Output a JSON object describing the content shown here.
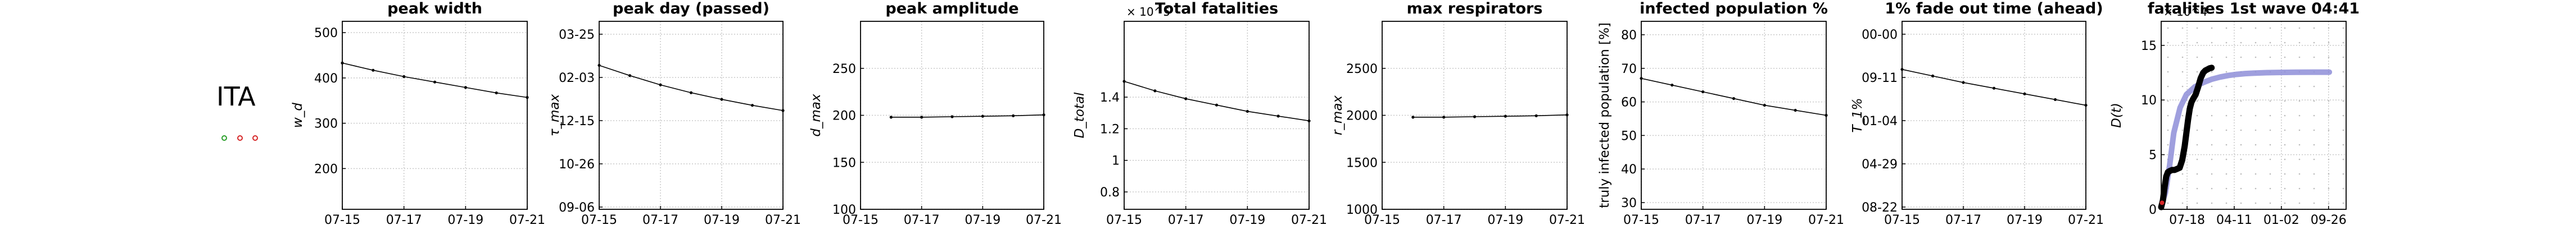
{
  "country": "ITA",
  "status_dots": [
    {
      "color": "#2ca02c"
    },
    {
      "color": "#d62728"
    },
    {
      "color": "#d62728"
    }
  ],
  "chart_data": [
    {
      "type": "line",
      "title": "peak width",
      "ylabel": "w_d",
      "xticks": [
        "07-15",
        "07-17",
        "07-19",
        "07-21"
      ],
      "yticks": [
        "200",
        "300",
        "400",
        "500"
      ],
      "ylim": [
        110,
        525
      ],
      "x": [
        0,
        1,
        2,
        3,
        4,
        5,
        6
      ],
      "values": [
        433,
        417,
        403,
        391,
        379,
        367,
        357
      ]
    },
    {
      "type": "line",
      "title": "peak day (passed)",
      "ylabel": "τ_max",
      "xticks": [
        "07-15",
        "07-17",
        "07-19",
        "07-21"
      ],
      "yticks": [
        "09-06",
        "10-26",
        "12-15",
        "02-03",
        "03-25"
      ],
      "ylim": [
        0,
        7.9
      ],
      "x": [
        0,
        1,
        2,
        3,
        4,
        5,
        6
      ],
      "values": [
        6.05,
        5.62,
        5.23,
        4.9,
        4.62,
        4.37,
        4.15
      ]
    },
    {
      "type": "line",
      "title": "peak amplitude",
      "ylabel": "d_max",
      "xticks": [
        "07-15",
        "07-17",
        "07-19",
        "07-21"
      ],
      "yticks": [
        "100",
        "150",
        "200",
        "250"
      ],
      "ylim": [
        100,
        300
      ],
      "x": [
        1,
        2,
        3,
        4,
        5,
        6
      ],
      "values": [
        198,
        198,
        198.5,
        199,
        199.5,
        200.5
      ]
    },
    {
      "type": "line",
      "title": "Total fatalities",
      "ylabel": "D_total",
      "offset_text": "× 10^5",
      "xticks": [
        "07-15",
        "07-17",
        "07-19",
        "07-21"
      ],
      "yticks": [
        "0.8",
        "1",
        "1.2",
        "1.4"
      ],
      "ylim": [
        0.69,
        1.88
      ],
      "x": [
        0,
        1,
        2,
        3,
        4,
        5,
        6
      ],
      "values": [
        1.5,
        1.44,
        1.39,
        1.35,
        1.31,
        1.28,
        1.25
      ]
    },
    {
      "type": "line",
      "title": "max respirators",
      "ylabel": "r_max",
      "xticks": [
        "07-15",
        "07-17",
        "07-19",
        "07-21"
      ],
      "yticks": [
        "1000",
        "1500",
        "2000",
        "2500"
      ],
      "ylim": [
        1000,
        3000
      ],
      "x": [
        1,
        2,
        3,
        4,
        5,
        6
      ],
      "values": [
        1980,
        1980,
        1985,
        1990,
        1995,
        2005
      ]
    },
    {
      "type": "line",
      "title": "infected population %",
      "ylabel": "truly infected population [%]",
      "xticks": [
        "07-15",
        "07-17",
        "07-19",
        "07-21"
      ],
      "yticks": [
        "30",
        "40",
        "50",
        "60",
        "70",
        "80"
      ],
      "ylim": [
        28,
        84
      ],
      "x": [
        0,
        1,
        2,
        3,
        4,
        5,
        6
      ],
      "values": [
        67,
        65,
        63,
        61,
        59,
        57.5,
        56
      ]
    },
    {
      "type": "line",
      "title": "1% fade out time (ahead)",
      "ylabel": "T_1%",
      "xticks": [
        "07-15",
        "07-17",
        "07-19",
        "07-21"
      ],
      "yticks": [
        "08-22",
        "04-29",
        "01-04",
        "09-11",
        "00-00"
      ],
      "ylim": [
        0,
        4.3
      ],
      "x": [
        0,
        1,
        2,
        3,
        4,
        5,
        6
      ],
      "values": [
        3.2,
        3.05,
        2.9,
        2.77,
        2.64,
        2.51,
        2.38
      ]
    },
    {
      "type": "scatter",
      "title": "fatalities 1st wave 04:41",
      "ylabel": "D(t)",
      "offset_text": "× 10^4",
      "xticks": [
        "07-18",
        "04-11",
        "01-02",
        "09-26"
      ],
      "yticks": [
        "0",
        "5",
        "10",
        "15"
      ],
      "ylim": [
        0,
        17.2
      ],
      "series": [
        {
          "x": [
            0,
            0.1,
            0.2,
            0.3,
            0.45,
            0.6,
            0.8,
            1.0,
            1.2,
            1.4,
            1.6,
            1.8,
            2.0,
            2.2,
            2.5,
            2.8,
            3.2,
            3.6,
            4.0
          ],
          "values": [
            0.3,
            1.5,
            4.0,
            7.0,
            9.3,
            10.5,
            11.2,
            11.6,
            11.9,
            12.1,
            12.25,
            12.35,
            12.42,
            12.46,
            12.5,
            12.52,
            12.54,
            12.55,
            12.55
          ]
        },
        {
          "x": [
            0,
            0.04,
            0.08,
            0.12,
            0.16,
            0.2,
            0.26,
            0.32,
            0.38,
            0.44,
            0.5,
            0.56,
            0.6,
            0.64,
            0.68,
            0.72,
            0.76,
            0.82,
            0.88,
            0.94,
            1.0,
            1.05,
            1.1,
            1.15,
            1.2
          ],
          "values": [
            0.2,
            0.8,
            2.0,
            3.0,
            3.4,
            3.5,
            3.6,
            3.6,
            3.7,
            3.8,
            4.5,
            5.8,
            7.0,
            8.2,
            9.2,
            9.8,
            10.1,
            10.5,
            11.2,
            12.0,
            12.5,
            12.7,
            12.8,
            12.9,
            12.95
          ]
        }
      ]
    }
  ]
}
